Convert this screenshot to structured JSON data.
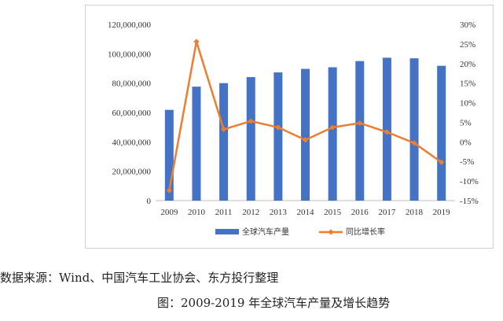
{
  "chart_data": {
    "type": "bar+line",
    "categories": [
      "2009",
      "2010",
      "2011",
      "2012",
      "2013",
      "2014",
      "2015",
      "2016",
      "2017",
      "2018",
      "2019"
    ],
    "series": [
      {
        "name": "全球汽车产量",
        "type": "bar",
        "axis": "left",
        "color": "#4472C4",
        "values": [
          61800000,
          77600000,
          80000000,
          84100000,
          87300000,
          89700000,
          90800000,
          95000000,
          97300000,
          96900000,
          91800000
        ]
      },
      {
        "name": "同比增长率",
        "type": "line",
        "axis": "right",
        "color": "#ED7D31",
        "values": [
          -12.4,
          25.6,
          3.2,
          5.3,
          3.7,
          0.5,
          3.7,
          4.8,
          2.5,
          -0.3,
          -5.2
        ]
      }
    ],
    "y_left": {
      "min": 0,
      "max": 120000000,
      "ticks": [
        "0",
        "20,000,000",
        "40,000,000",
        "60,000,000",
        "80,000,000",
        "100,000,000",
        "120,000,000"
      ]
    },
    "y_right": {
      "min": -15,
      "max": 30,
      "ticks": [
        "-15%",
        "-10%",
        "-5%",
        "0%",
        "5%",
        "10%",
        "15%",
        "20%",
        "25%",
        "30%"
      ]
    },
    "legend_position": "bottom",
    "grid": false
  },
  "source_text": "数据来源：Wind、中国汽车工业协会、东方投行整理",
  "caption": "图：2009-2019 年全球汽车产量及增长趋势"
}
